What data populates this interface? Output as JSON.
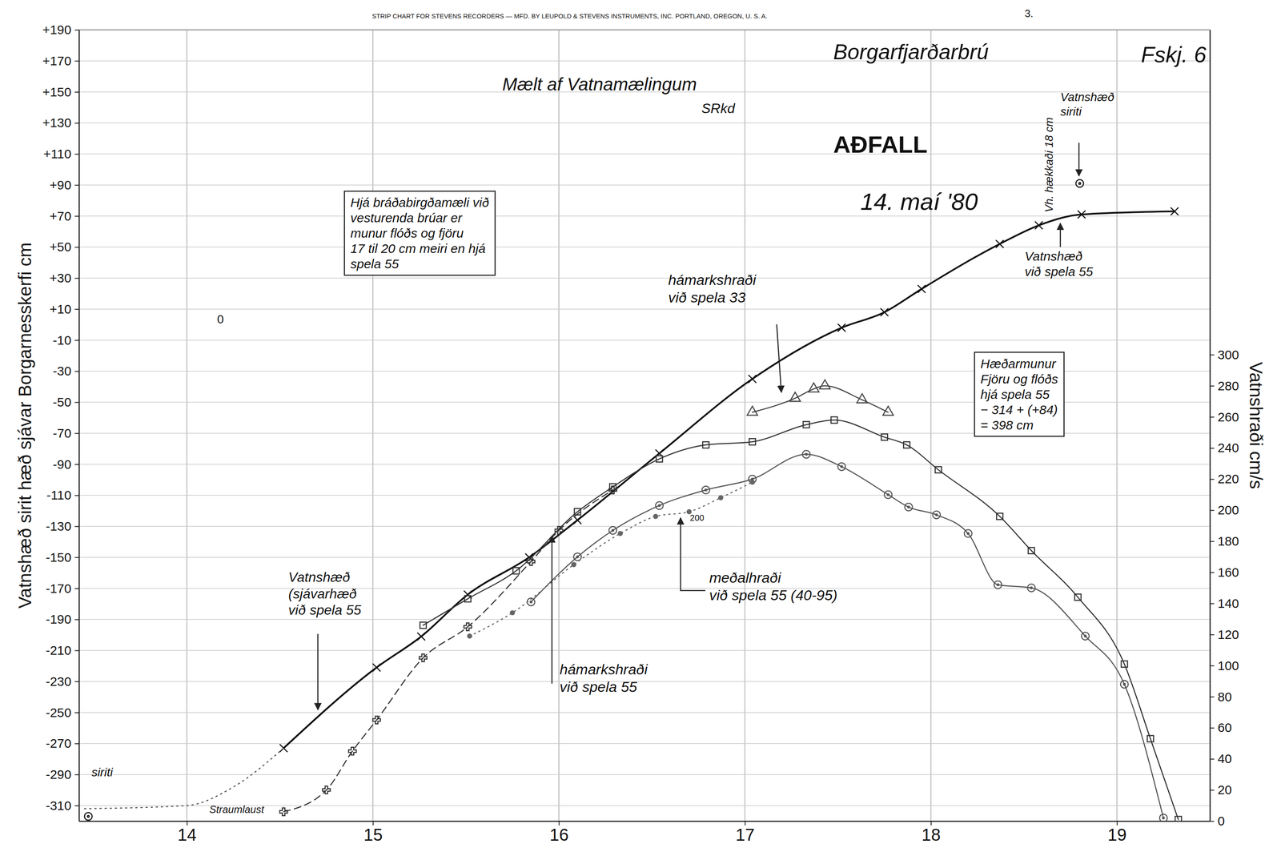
{
  "chart_data": {
    "type": "line",
    "title": "Borgarfjarðarbrú",
    "xlim": [
      13.42,
      19.5
    ],
    "xticks": [
      14,
      15,
      16,
      17,
      18,
      19
    ],
    "ylim": [
      -320,
      190
    ],
    "yticks": [
      {
        "value": 190,
        "label": "+190"
      },
      {
        "value": 170,
        "label": "+170"
      },
      {
        "value": 150,
        "label": "+150"
      },
      {
        "value": 130,
        "label": "+130"
      },
      {
        "value": 110,
        "label": "+110"
      },
      {
        "value": 90,
        "label": "+90"
      },
      {
        "value": 70,
        "label": "+70"
      },
      {
        "value": 50,
        "label": "+50"
      },
      {
        "value": 30,
        "label": "+30"
      },
      {
        "value": 10,
        "label": "+10"
      },
      -10,
      -30,
      -50,
      -70,
      -90,
      -110,
      -130,
      -150,
      -170,
      -190,
      -210,
      -230,
      -250,
      -270,
      -290,
      -310
    ],
    "ylabel": "Vatnshæð sirit hæð sjávar Borgarnesskerfi cm",
    "y2lim": [
      0,
      509
    ],
    "y2ticks": [
      0,
      20,
      40,
      60,
      80,
      100,
      120,
      140,
      160,
      180,
      200,
      220,
      240,
      260,
      280,
      300
    ],
    "y2label": "Vatnshraði cm/s",
    "grid": true,
    "series": [
      {
        "x": [
          14.52,
          15.02,
          15.26,
          15.51,
          15.84,
          16.1,
          16.54,
          17.04,
          17.52,
          17.75,
          17.95,
          18.37,
          18.58,
          18.81,
          19.31
        ],
        "values": [
          -273,
          -221,
          -201,
          -174,
          -150,
          -126,
          -83,
          -35,
          -2,
          8,
          23,
          52,
          64,
          71,
          73
        ],
        "axis": "y",
        "color": "#111111",
        "marker": "cross",
        "line_style": "solid"
      },
      {
        "x": [
          13.45,
          14.0,
          14.25,
          14.52
        ],
        "values": [
          -312,
          -310,
          -298,
          -273
        ],
        "axis": "y",
        "color": "#555555",
        "marker": "none",
        "line_style": "dotted"
      },
      {
        "x": [
          13.47
        ],
        "values": [
          -317
        ],
        "axis": "y",
        "color": "#111111",
        "marker": "circle",
        "line_style": "none"
      },
      {
        "x": [
          18.8
        ],
        "values": [
          91
        ],
        "axis": "y",
        "color": "#111111",
        "marker": "circle",
        "line_style": "none"
      },
      {
        "x": [
          17.04,
          17.27,
          17.37,
          17.43,
          17.63,
          17.77
        ],
        "values": [
          263,
          272,
          278,
          280,
          271,
          263
        ],
        "axis": "y2",
        "color": "#444444",
        "marker": "triangle",
        "line_style": "solid"
      },
      {
        "x": [
          15.27,
          15.51,
          15.77,
          16.1,
          16.29,
          16.54,
          16.79,
          17.04,
          17.33,
          17.48,
          17.75,
          17.87,
          18.04,
          18.37,
          18.54,
          18.79,
          19.04,
          19.18,
          19.33
        ],
        "values": [
          126,
          143,
          161,
          199,
          215,
          233,
          242,
          244,
          255,
          258,
          247,
          242,
          226,
          196,
          174,
          144,
          101,
          53,
          1
        ],
        "axis": "y2",
        "color": "#333333",
        "marker": "square",
        "line_style": "solid"
      },
      {
        "x": [
          14.52,
          14.75,
          14.89,
          15.02,
          15.27,
          15.51,
          15.85,
          16.0,
          16.29
        ],
        "values": [
          6,
          20,
          45,
          65,
          105,
          125,
          167,
          187,
          213
        ],
        "axis": "y2",
        "color": "#333333",
        "marker": "plus",
        "line_style": "dashed"
      },
      {
        "x": [
          15.85,
          16.1,
          16.29,
          16.54,
          16.79,
          17.04,
          17.33,
          17.52,
          17.77,
          17.88,
          18.03,
          18.2,
          18.36,
          18.54,
          18.83,
          19.04,
          19.25
        ],
        "values": [
          141,
          170,
          187,
          203,
          213,
          220,
          236,
          228,
          210,
          202,
          197,
          185,
          152,
          150,
          119,
          88,
          2
        ],
        "axis": "y2",
        "color": "#555555",
        "marker": "circle",
        "line_style": "solid"
      },
      {
        "x": [
          15.52,
          15.75,
          16.08,
          16.33,
          16.52,
          16.7,
          16.87,
          17.04
        ],
        "values": [
          119,
          134,
          165,
          185,
          196,
          199,
          208,
          218
        ],
        "axis": "y2",
        "color": "#666666",
        "marker": "dot",
        "line_style": "dotted"
      }
    ],
    "annotations": [
      {
        "text": "STRIP CHART FOR STEVENS RECORDERS — MFD. BY LEUPOLD & STEVENS INSTRUMENTS, INC. PORTLAND, OREGON, U. S. A."
      },
      {
        "text": "3."
      },
      {
        "text": "Mælt af Vatnamælingum"
      },
      {
        "text": "SRkd"
      },
      {
        "text": "AÐFALL"
      },
      {
        "text": "14. maí '80"
      },
      {
        "text": "Fskj. 6"
      },
      {
        "text": "Hjá bráðabirgðamæli við\nvesturenda brúar er\nmunur flóðs og fjöru\n17 til 20 cm meiri en hjá\nspela 55"
      },
      {
        "text": "Vatnshæð\nsiriti"
      },
      {
        "text": "Vh. hækkaði 18 cm"
      },
      {
        "text": "Vatnshæð\nvið spela 55"
      },
      {
        "text": "hámarkshraði\nvið spela 33"
      },
      {
        "text": "Hæðarmunur\nFjöru og flóðs\nhjá spela 55\n− 314 + (+84)\n= 398 cm"
      },
      {
        "text": "meðalhraði\nvið spela 55 (40-95)"
      },
      {
        "text": "hámarkshraði\nvið spela 55"
      },
      {
        "text": "Vatnshæð\n(sjávarhæð\nvið spela 55"
      },
      {
        "text": "siriti"
      },
      {
        "text": "Straumlaust"
      },
      {
        "text": "0"
      },
      {
        "text": "200"
      }
    ]
  }
}
